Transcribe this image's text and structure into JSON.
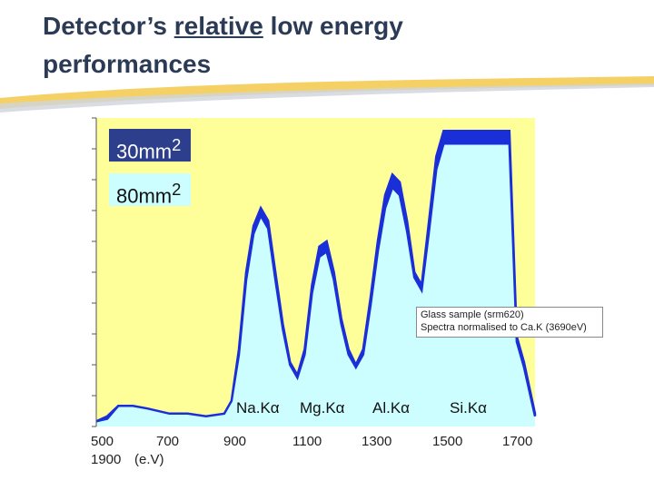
{
  "slide": {
    "title_part1": "Detector’s ",
    "title_underlined": "relative",
    "title_part2": " low energy",
    "title_line2": "performances"
  },
  "chart_data": {
    "type": "area",
    "title": "",
    "xlabel": "(e.V)",
    "ylabel": "",
    "xlim": [
      500,
      1700
    ],
    "x_ticks": [
      "500",
      "700",
      "900",
      "1100",
      "1300",
      "1500",
      "1700"
    ],
    "x_tick_extra": "1900",
    "legend": [
      {
        "name": "30mm2",
        "color": "#1a2fd8"
      },
      {
        "name": "80mm2",
        "color": "#ccfdff"
      }
    ],
    "annotation": [
      "Glass sample (srm620)",
      "Spectra normalised to Ca.K (3690eV)"
    ],
    "peak_labels": [
      "Na.Kα",
      "Mg.Kα",
      "Al.Kα",
      "Si.Kα"
    ],
    "colors": {
      "plot_bg": "#ffff99",
      "series_80": "#ccfdff",
      "series_30": "#1a2fd8"
    },
    "series": [
      {
        "name": "80mm2",
        "x": [
          500,
          530,
          560,
          600,
          640,
          700,
          750,
          800,
          850,
          870,
          890,
          910,
          930,
          950,
          970,
          990,
          1010,
          1030,
          1050,
          1070,
          1090,
          1110,
          1130,
          1150,
          1170,
          1190,
          1210,
          1230,
          1250,
          1270,
          1290,
          1310,
          1330,
          1350,
          1370,
          1390,
          1410,
          1430,
          1450,
          1470,
          1490,
          1510,
          1530,
          1550,
          1570,
          1600,
          1630,
          1650,
          1670,
          1700
        ],
        "y": [
          0.02,
          0.04,
          0.08,
          0.08,
          0.07,
          0.05,
          0.05,
          0.04,
          0.05,
          0.1,
          0.3,
          0.6,
          0.78,
          0.85,
          0.8,
          0.6,
          0.4,
          0.25,
          0.2,
          0.3,
          0.55,
          0.7,
          0.72,
          0.6,
          0.42,
          0.3,
          0.24,
          0.3,
          0.5,
          0.72,
          0.9,
          0.98,
          0.95,
          0.8,
          0.6,
          0.55,
          0.8,
          1.05,
          1.15,
          1.15,
          1.15,
          1.15,
          1.15,
          1.15,
          1.15,
          1.15,
          1.15,
          0.35,
          0.25,
          0.05
        ]
      },
      {
        "name": "30mm2",
        "x": [
          500,
          530,
          560,
          600,
          640,
          700,
          750,
          800,
          850,
          870,
          890,
          910,
          930,
          950,
          970,
          990,
          1010,
          1030,
          1050,
          1070,
          1090,
          1110,
          1130,
          1150,
          1170,
          1190,
          1210,
          1230,
          1250,
          1270,
          1290,
          1310,
          1330,
          1350,
          1370,
          1390,
          1410,
          1430,
          1450,
          1470,
          1490,
          1510,
          1530,
          1550,
          1570,
          1600,
          1630,
          1650,
          1670,
          1700
        ],
        "y": [
          0.02,
          0.03,
          0.08,
          0.08,
          0.07,
          0.05,
          0.05,
          0.04,
          0.05,
          0.1,
          0.28,
          0.57,
          0.75,
          0.82,
          0.77,
          0.57,
          0.38,
          0.24,
          0.19,
          0.28,
          0.52,
          0.66,
          0.68,
          0.57,
          0.4,
          0.28,
          0.23,
          0.28,
          0.47,
          0.68,
          0.85,
          0.93,
          0.9,
          0.76,
          0.58,
          0.53,
          0.76,
          1.0,
          1.1,
          1.1,
          1.1,
          1.1,
          1.1,
          1.1,
          1.1,
          1.1,
          1.1,
          0.33,
          0.23,
          0.04
        ]
      }
    ]
  }
}
